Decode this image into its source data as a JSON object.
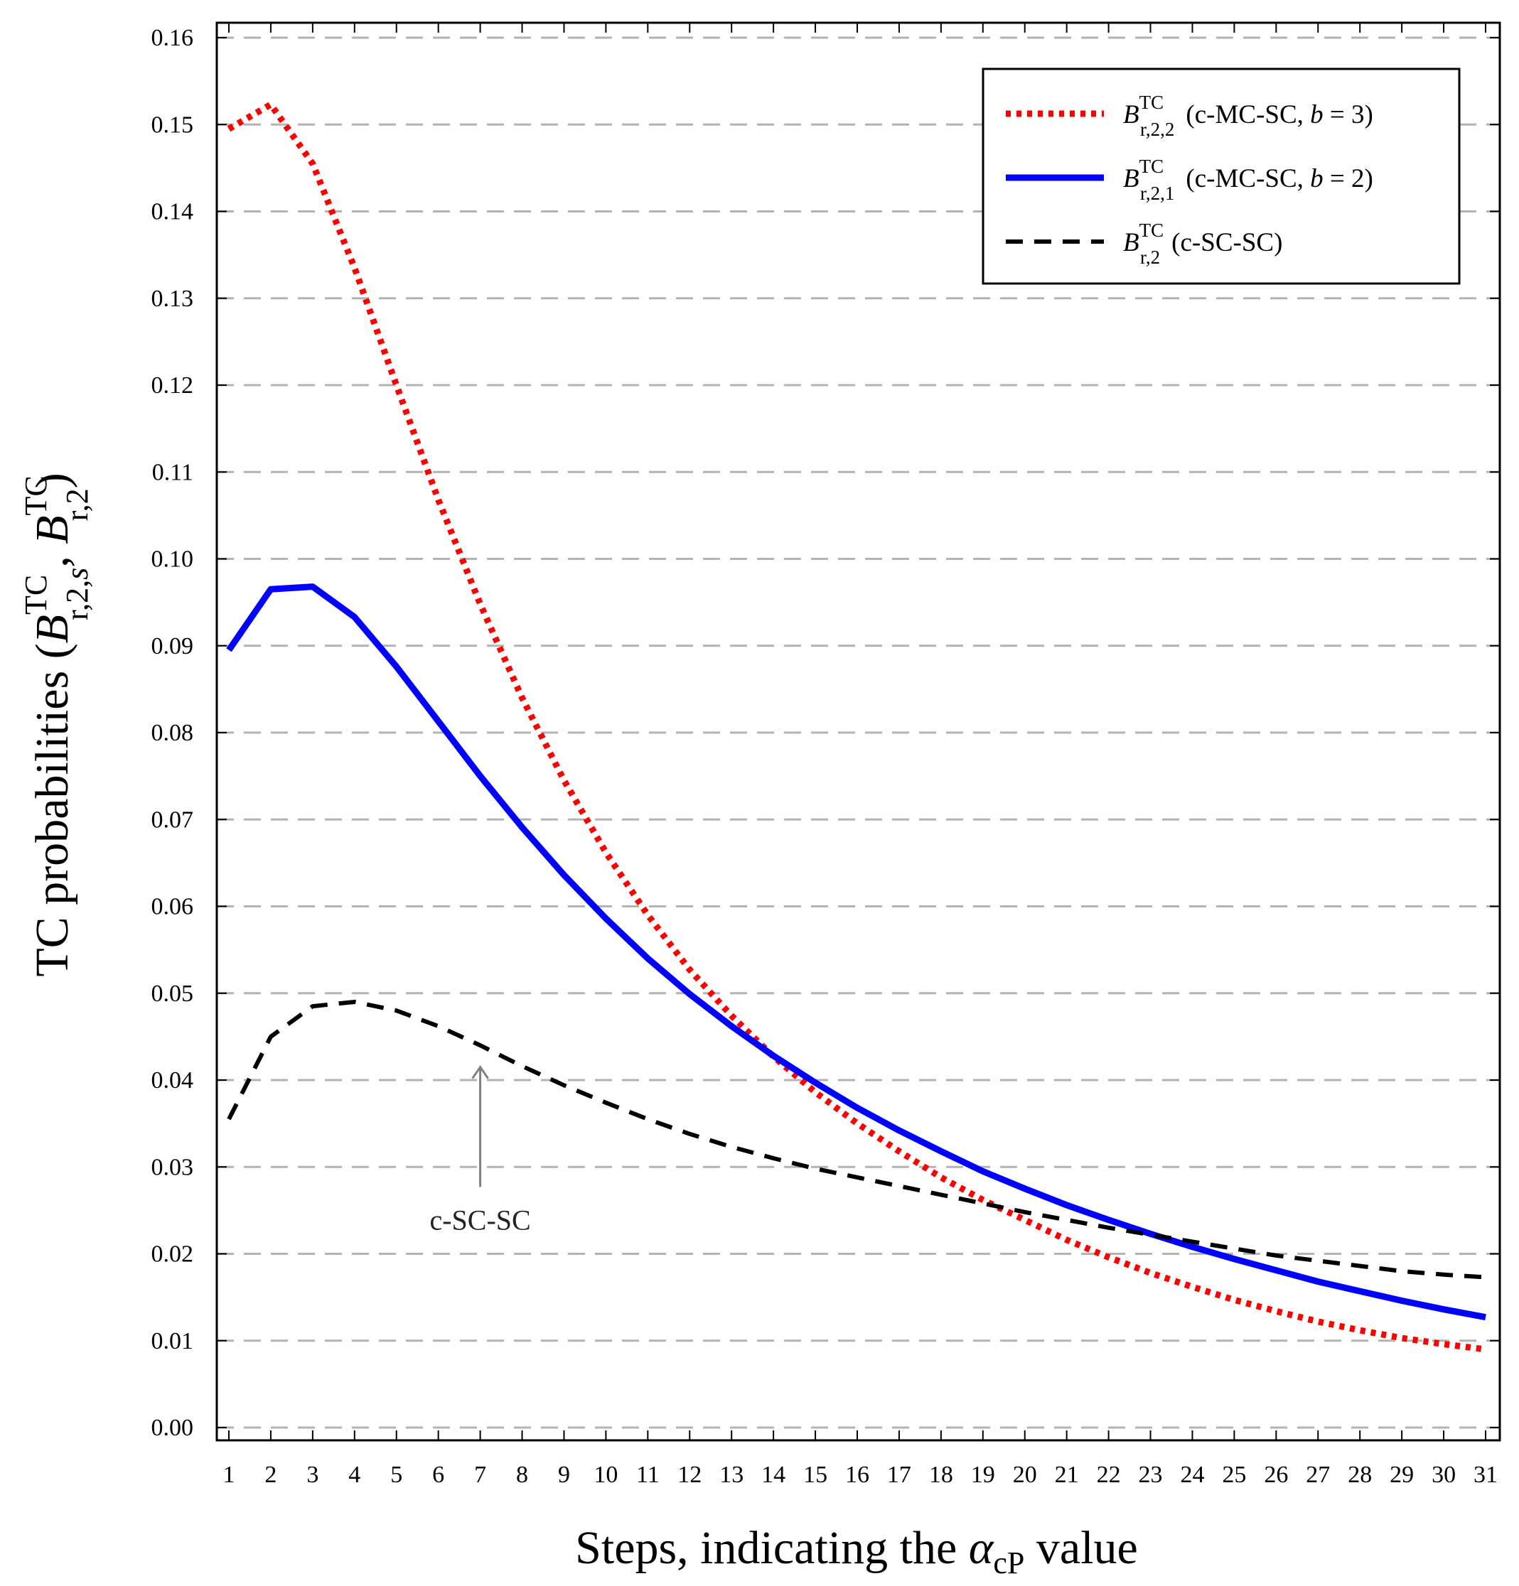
{
  "chart_data": {
    "type": "line",
    "title": "",
    "xlabel": "Steps, indicating the α_cP value",
    "xlabel_parts": {
      "prefix": "Steps, indicating the ",
      "symbol": "α",
      "subscript": "cP",
      "suffix": " value"
    },
    "ylabel": "TC probabilities (B^TC_{r,2,s}, B^TC_{r,2})",
    "ylabel_parts": {
      "prefix": "TC probabilities (",
      "b1": "B",
      "b1_sup": "TC",
      "b1_sub": "r,2,",
      "b1_sub_italic": "s",
      "sep": ", ",
      "b2": "B",
      "b2_sup": "TC",
      "b2_sub": "r,2",
      "suffix": ")"
    },
    "x": [
      1,
      2,
      3,
      4,
      5,
      6,
      7,
      8,
      9,
      10,
      11,
      12,
      13,
      14,
      15,
      16,
      17,
      18,
      19,
      20,
      21,
      22,
      23,
      24,
      25,
      26,
      27,
      28,
      29,
      30,
      31
    ],
    "xlim": [
      1,
      31
    ],
    "ylim": [
      0.0,
      0.16
    ],
    "yticks": [
      "0.00",
      "0.01",
      "0.02",
      "0.03",
      "0.04",
      "0.05",
      "0.06",
      "0.07",
      "0.08",
      "0.09",
      "0.10",
      "0.11",
      "0.12",
      "0.13",
      "0.14",
      "0.15",
      "0.16"
    ],
    "xticks": [
      "1",
      "2",
      "3",
      "4",
      "5",
      "6",
      "7",
      "8",
      "9",
      "10",
      "11",
      "12",
      "13",
      "14",
      "15",
      "16",
      "17",
      "18",
      "19",
      "20",
      "21",
      "22",
      "23",
      "24",
      "25",
      "26",
      "27",
      "28",
      "29",
      "30",
      "31"
    ],
    "grid": "horizontal dashed",
    "legend_position": "top-right",
    "series": [
      {
        "name": "B^TC_{r,2,2} (c-MC-SC, b = 3)",
        "legend": {
          "base": "B",
          "sup": "TC",
          "sub": "r,2,2",
          "desc_prefix": "(c-MC-SC, ",
          "desc_var": "b",
          "desc_suffix": " = 3)"
        },
        "style": "dotted",
        "color": "#ff0000",
        "values": [
          0.1495,
          0.1523,
          0.1455,
          0.1335,
          0.12,
          0.1068,
          0.0948,
          0.084,
          0.0745,
          0.0662,
          0.059,
          0.0527,
          0.0474,
          0.0427,
          0.0386,
          0.035,
          0.0318,
          0.0288,
          0.0262,
          0.0239,
          0.0216,
          0.0196,
          0.0178,
          0.0162,
          0.0147,
          0.0134,
          0.0122,
          0.0112,
          0.0103,
          0.0096,
          0.009
        ]
      },
      {
        "name": "B^TC_{r,2,1} (c-MC-SC, b = 2)",
        "legend": {
          "base": "B",
          "sup": "TC",
          "sub": "r,2,1",
          "desc_prefix": "(c-MC-SC, ",
          "desc_var": "b",
          "desc_suffix": " = 2)"
        },
        "style": "solid",
        "color": "#0000ff",
        "values": [
          0.0895,
          0.0965,
          0.0968,
          0.0933,
          0.0876,
          0.0813,
          0.075,
          0.0691,
          0.0636,
          0.0586,
          0.054,
          0.0499,
          0.0462,
          0.0428,
          0.0397,
          0.0368,
          0.0342,
          0.0318,
          0.0295,
          0.0275,
          0.0256,
          0.0239,
          0.0223,
          0.0208,
          0.0194,
          0.0181,
          0.0168,
          0.0157,
          0.0146,
          0.0136,
          0.0127
        ]
      },
      {
        "name": "B^TC_{r,2} (c-SC-SC)",
        "legend": {
          "base": "B",
          "sup": "TC",
          "sub": "r,2",
          "desc_prefix": "(c-SC-SC)",
          "desc_var": "",
          "desc_suffix": ""
        },
        "style": "dashed",
        "color": "#000000",
        "values": [
          0.0355,
          0.045,
          0.0485,
          0.049,
          0.048,
          0.0462,
          0.044,
          0.0416,
          0.0394,
          0.0374,
          0.0355,
          0.0338,
          0.0323,
          0.031,
          0.0298,
          0.0288,
          0.0278,
          0.0268,
          0.0258,
          0.0248,
          0.0239,
          0.023,
          0.0222,
          0.0214,
          0.0206,
          0.0198,
          0.0192,
          0.0186,
          0.018,
          0.0176,
          0.0173
        ]
      }
    ],
    "annotations": [
      {
        "text": "c-SC-SC",
        "arrow_to": {
          "x": 7,
          "y": 0.0415
        },
        "arrow_from": {
          "x": 7,
          "y": 0.0277
        }
      }
    ]
  }
}
